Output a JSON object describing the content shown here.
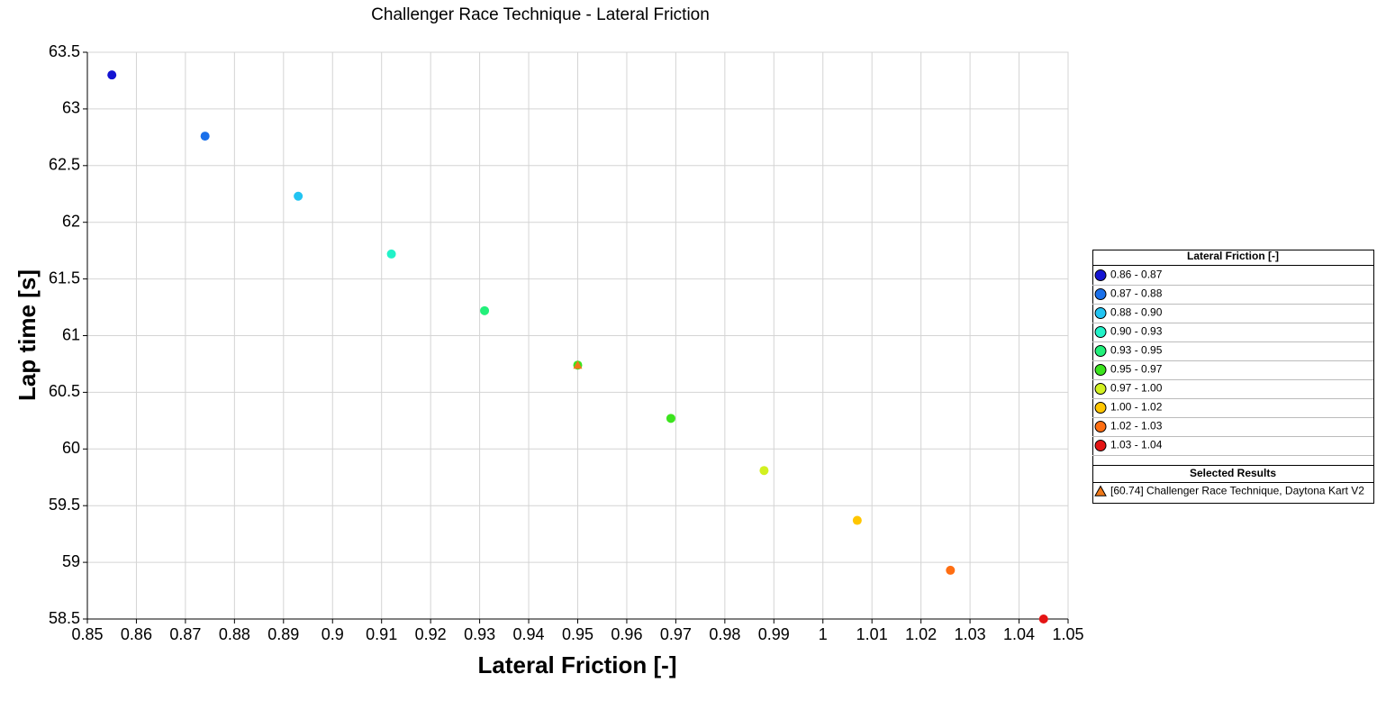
{
  "chart_data": {
    "type": "scatter",
    "title": "Challenger Race Technique - Lateral Friction",
    "x_label": "Lateral Friction [-]",
    "y_label": "Lap time [s]",
    "legend_title": "Lateral Friction [-]",
    "selected_title": "Selected Results",
    "xlim": [
      0.85,
      1.05
    ],
    "ylim": [
      58.5,
      63.5
    ],
    "xticks": [
      0.85,
      0.86,
      0.87,
      0.88,
      0.89,
      0.9,
      0.91,
      0.92,
      0.93,
      0.94,
      0.95,
      0.96,
      0.97,
      0.98,
      0.99,
      1,
      1.01,
      1.02,
      1.03,
      1.04,
      1.05
    ],
    "yticks": [
      58.5,
      59,
      59.5,
      60,
      60.5,
      61,
      61.5,
      62,
      62.5,
      63,
      63.5
    ],
    "grid": true,
    "legend": "right",
    "series": [
      {
        "name": "0.86 - 0.87",
        "color": "#1414d2",
        "x": [
          0.855
        ],
        "values": [
          63.3
        ]
      },
      {
        "name": "0.87 - 0.88",
        "color": "#1a70ea",
        "x": [
          0.874
        ],
        "values": [
          62.76
        ]
      },
      {
        "name": "0.88 - 0.90",
        "color": "#22c4f2",
        "x": [
          0.893
        ],
        "values": [
          62.23
        ]
      },
      {
        "name": "0.90 - 0.93",
        "color": "#22f2c8",
        "x": [
          0.912
        ],
        "values": [
          61.72
        ]
      },
      {
        "name": "0.93 - 0.95",
        "color": "#22f07a",
        "x": [
          0.931
        ],
        "values": [
          61.22
        ]
      },
      {
        "name": "0.95 - 0.97",
        "color": "#3ce41e",
        "x": [
          0.95,
          0.969
        ],
        "values": [
          60.74,
          60.27
        ]
      },
      {
        "name": "0.97 - 1.00",
        "color": "#d2f020",
        "x": [
          0.988
        ],
        "values": [
          59.81
        ]
      },
      {
        "name": "1.00 - 1.02",
        "color": "#ffc600",
        "x": [
          1.007
        ],
        "values": [
          59.37
        ]
      },
      {
        "name": "1.02 - 1.03",
        "color": "#ff6e12",
        "x": [
          1.026
        ],
        "values": [
          58.93
        ]
      },
      {
        "name": "1.03 - 1.04",
        "color": "#e41414",
        "x": [
          1.045
        ],
        "values": [
          58.5
        ]
      }
    ],
    "selected": {
      "name": "[60.74] Challenger Race Technique, Daytona Kart V2",
      "color": "#f07818",
      "marker": "triangle",
      "x": [
        0.95
      ],
      "values": [
        60.74
      ]
    }
  }
}
